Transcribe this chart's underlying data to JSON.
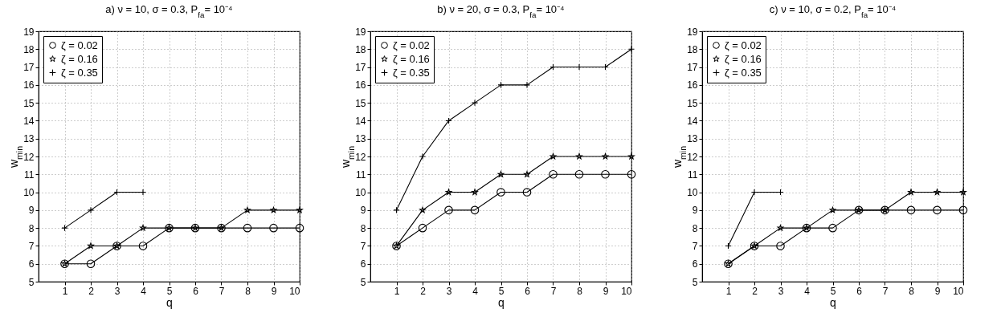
{
  "chart_data": [
    {
      "type": "line",
      "title": "a) ν = 10, σ = 0.3, P$_{fa}$= 10⁻⁴",
      "xlabel": "q",
      "ylabel": "w$_{min}$",
      "x": [
        1,
        2,
        3,
        4,
        5,
        6,
        7,
        8,
        9,
        10
      ],
      "xlim": [
        0,
        10
      ],
      "xticks": [
        1,
        2,
        3,
        4,
        5,
        6,
        7,
        8,
        9,
        10
      ],
      "ylim": [
        5,
        19
      ],
      "yticks": [
        5,
        6,
        7,
        8,
        9,
        10,
        11,
        12,
        13,
        14,
        15,
        16,
        17,
        18,
        19
      ],
      "grid": true,
      "legend": "top left",
      "series": [
        {
          "name": "ζ = 0.02",
          "color": "#000000",
          "marker": "circle",
          "values": [
            6,
            6,
            7,
            7,
            8,
            8,
            8,
            8,
            8,
            8
          ]
        },
        {
          "name": "ζ = 0.16",
          "color": "#000000",
          "marker": "star",
          "values": [
            6,
            7,
            7,
            8,
            8,
            8,
            8,
            9,
            9,
            9
          ]
        },
        {
          "name": "ζ = 0.35",
          "color": "#000000",
          "marker": "cross",
          "values": [
            8,
            9,
            10,
            10,
            null,
            null,
            null,
            null,
            null,
            null
          ]
        }
      ]
    },
    {
      "type": "line",
      "title": "b) ν = 20, σ = 0.3, P$_{fa}$= 10⁻⁴",
      "xlabel": "q",
      "ylabel": "w$_{min}$",
      "x": [
        1,
        2,
        3,
        4,
        5,
        6,
        7,
        8,
        9,
        10
      ],
      "xlim": [
        0,
        10
      ],
      "xticks": [
        1,
        2,
        3,
        4,
        5,
        6,
        7,
        8,
        9,
        10
      ],
      "ylim": [
        5,
        19
      ],
      "yticks": [
        5,
        6,
        7,
        8,
        9,
        10,
        11,
        12,
        13,
        14,
        15,
        16,
        17,
        18,
        19
      ],
      "grid": true,
      "legend": "top left",
      "series": [
        {
          "name": "ζ = 0.02",
          "color": "#000000",
          "marker": "circle",
          "values": [
            7,
            8,
            9,
            9,
            10,
            10,
            11,
            11,
            11,
            11
          ]
        },
        {
          "name": "ζ = 0.16",
          "color": "#000000",
          "marker": "star",
          "values": [
            7,
            9,
            10,
            10,
            11,
            11,
            12,
            12,
            12,
            12
          ]
        },
        {
          "name": "ζ = 0.35",
          "color": "#000000",
          "marker": "cross",
          "values": [
            9,
            12,
            14,
            15,
            16,
            16,
            17,
            17,
            17,
            18
          ]
        }
      ]
    },
    {
      "type": "line",
      "title": "c) ν = 10, σ = 0.2, P$_{fa}$= 10⁻⁴",
      "xlabel": "q",
      "ylabel": "w$_{min}$",
      "x": [
        1,
        2,
        3,
        4,
        5,
        6,
        7,
        8,
        9,
        10
      ],
      "xlim": [
        0,
        10
      ],
      "xticks": [
        1,
        2,
        3,
        4,
        5,
        6,
        7,
        8,
        9,
        10
      ],
      "ylim": [
        5,
        19
      ],
      "yticks": [
        5,
        6,
        7,
        8,
        9,
        10,
        11,
        12,
        13,
        14,
        15,
        16,
        17,
        18,
        19
      ],
      "grid": true,
      "legend": "top left",
      "series": [
        {
          "name": "ζ = 0.02",
          "color": "#000000",
          "marker": "circle",
          "values": [
            6,
            7,
            7,
            8,
            8,
            9,
            9,
            9,
            9,
            9
          ]
        },
        {
          "name": "ζ = 0.16",
          "color": "#000000",
          "marker": "star",
          "values": [
            6,
            7,
            8,
            8,
            9,
            9,
            9,
            10,
            10,
            10
          ]
        },
        {
          "name": "ζ = 0.35",
          "color": "#000000",
          "marker": "cross",
          "values": [
            7,
            10,
            10,
            null,
            null,
            null,
            null,
            null,
            null,
            null
          ]
        }
      ]
    }
  ]
}
